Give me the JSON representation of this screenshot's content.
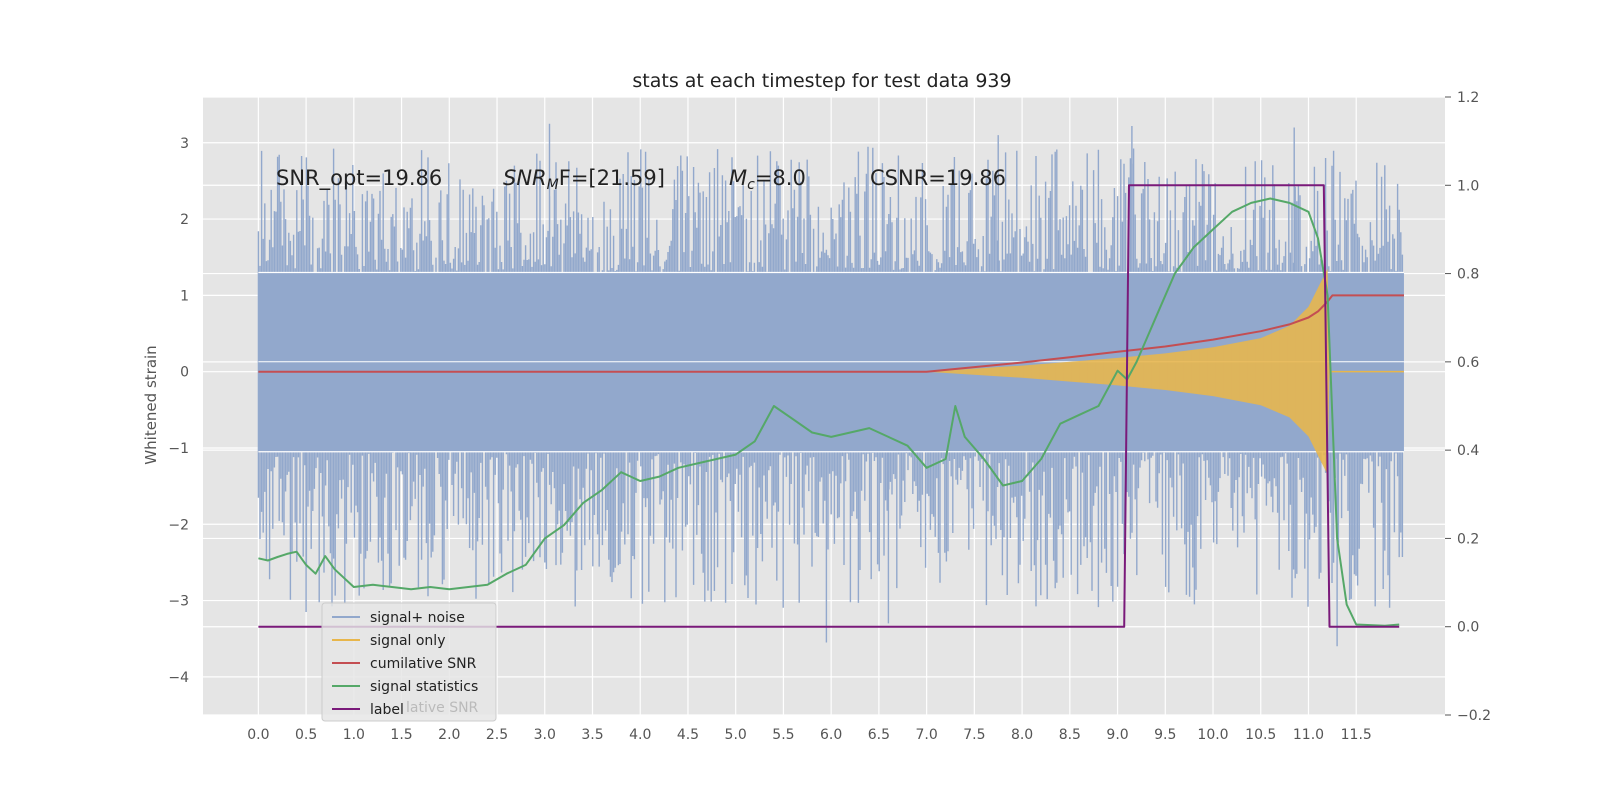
{
  "chart_data": {
    "type": "line",
    "title": "stats at each timestep for test data 939",
    "ylabel": "Whitened strain",
    "xlim": [
      -0.58,
      12.43
    ],
    "ylim": [
      -4.5,
      3.6
    ],
    "y2lim": [
      -0.2,
      1.2
    ],
    "x_ticks": [
      0.0,
      0.5,
      1.0,
      1.5,
      2.0,
      2.5,
      3.0,
      3.5,
      4.0,
      4.5,
      5.0,
      5.5,
      6.0,
      6.5,
      7.0,
      7.5,
      8.0,
      8.5,
      9.0,
      9.5,
      10.0,
      10.5,
      11.0,
      11.5
    ],
    "y_ticks": [
      3,
      2,
      1,
      0,
      -1,
      -2,
      -3,
      -4
    ],
    "y2_ticks": [
      1.2,
      1.0,
      0.8,
      0.6,
      0.4,
      0.2,
      0.0,
      -0.2
    ],
    "grid": true,
    "legend_position": "lower-left",
    "annotations": {
      "snr_opt": "SNR_opt=19.86",
      "snr_mf_base": "SNR",
      "snr_mf_sub": "M",
      "snr_mf_rest": "F=[21.59]",
      "mc_base": "M",
      "mc_sub": "c",
      "mc_rest": "=8.0",
      "csnr": "CSNR=19.86"
    },
    "legend_overlap_text": "lative SNR",
    "series": [
      {
        "name": "signal+ noise",
        "axis": "left",
        "color": "#92a8cc",
        "style": "noise band",
        "x_range": [
          0.0,
          12.0
        ],
        "envelope_upper": [
          [
            0.0,
            1.3
          ],
          [
            12.0,
            1.3
          ]
        ],
        "envelope_lower": [
          [
            0.0,
            -1.05
          ],
          [
            12.0,
            -1.05
          ]
        ],
        "peak_maximum": 3.25,
        "peak_minimum": -3.6
      },
      {
        "name": "signal only",
        "axis": "left",
        "color": "#e8b64b",
        "style": "chirp envelope",
        "amplitude": [
          [
            7.0,
            0.0
          ],
          [
            8.0,
            0.08
          ],
          [
            9.0,
            0.18
          ],
          [
            9.5,
            0.24
          ],
          [
            10.0,
            0.32
          ],
          [
            10.5,
            0.44
          ],
          [
            10.8,
            0.6
          ],
          [
            11.0,
            0.85
          ],
          [
            11.1,
            1.1
          ],
          [
            11.2,
            1.35
          ],
          [
            11.22,
            0.0
          ],
          [
            12.0,
            0.0
          ]
        ]
      },
      {
        "name": "cumilative SNR",
        "axis": "left",
        "color": "#c44e52",
        "x": [
          0.0,
          7.0,
          7.5,
          8.0,
          8.5,
          9.0,
          9.5,
          10.0,
          10.5,
          10.8,
          11.0,
          11.1,
          11.2,
          11.25,
          12.0
        ],
        "values": [
          0.0,
          0.0,
          0.06,
          0.12,
          0.19,
          0.26,
          0.33,
          0.42,
          0.53,
          0.62,
          0.71,
          0.79,
          0.92,
          1.0,
          1.0
        ]
      },
      {
        "name": "signal statistics",
        "axis": "right",
        "color": "#55a868",
        "x": [
          0.0,
          0.1,
          0.2,
          0.3,
          0.4,
          0.5,
          0.6,
          0.7,
          0.8,
          1.0,
          1.2,
          1.4,
          1.6,
          1.8,
          2.0,
          2.2,
          2.4,
          2.6,
          2.8,
          3.0,
          3.2,
          3.4,
          3.6,
          3.8,
          4.0,
          4.2,
          4.4,
          4.6,
          4.8,
          5.0,
          5.2,
          5.4,
          5.6,
          5.8,
          6.0,
          6.2,
          6.4,
          6.6,
          6.8,
          7.0,
          7.2,
          7.3,
          7.4,
          7.6,
          7.8,
          8.0,
          8.2,
          8.4,
          8.6,
          8.8,
          9.0,
          9.1,
          9.2,
          9.4,
          9.6,
          9.8,
          10.0,
          10.2,
          10.4,
          10.6,
          10.8,
          11.0,
          11.1,
          11.2,
          11.3,
          11.4,
          11.5,
          11.8,
          11.95
        ],
        "values": [
          0.155,
          0.15,
          0.158,
          0.165,
          0.17,
          0.14,
          0.12,
          0.16,
          0.13,
          0.09,
          0.095,
          0.09,
          0.085,
          0.09,
          0.085,
          0.09,
          0.095,
          0.12,
          0.14,
          0.2,
          0.23,
          0.28,
          0.31,
          0.35,
          0.33,
          0.34,
          0.36,
          0.37,
          0.38,
          0.39,
          0.42,
          0.5,
          0.47,
          0.44,
          0.43,
          0.44,
          0.45,
          0.43,
          0.41,
          0.36,
          0.38,
          0.5,
          0.43,
          0.38,
          0.32,
          0.33,
          0.38,
          0.46,
          0.48,
          0.5,
          0.58,
          0.56,
          0.6,
          0.7,
          0.8,
          0.86,
          0.9,
          0.94,
          0.96,
          0.97,
          0.96,
          0.94,
          0.88,
          0.75,
          0.2,
          0.05,
          0.005,
          0.002,
          0.005
        ]
      },
      {
        "name": "label",
        "axis": "right",
        "color": "#7a1a7a",
        "x": [
          0.0,
          9.07,
          9.12,
          11.16,
          11.22,
          11.95
        ],
        "values": [
          0.0,
          0.0,
          1.0,
          1.0,
          0.0,
          0.0
        ]
      }
    ]
  }
}
